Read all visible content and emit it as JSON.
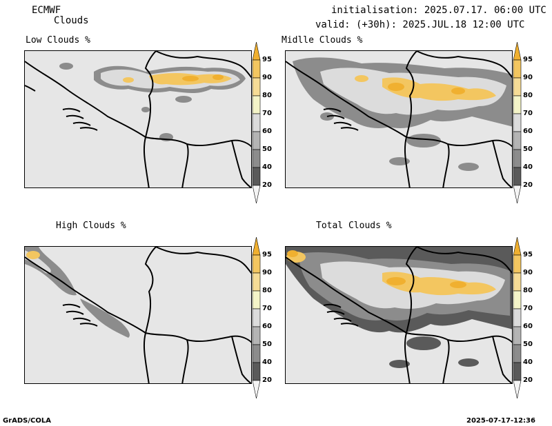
{
  "header": {
    "model": "ECMWF",
    "product": "Clouds",
    "initialisation": "initialisation: 2025.07.17. 06:00 UTC",
    "valid": "valid: (+30h): 2025.JUL.18 12:00 UTC"
  },
  "panels": [
    {
      "title": "Low Clouds %"
    },
    {
      "title": "Midlle Clouds %"
    },
    {
      "title": "High Clouds %"
    },
    {
      "title": "Total Clouds %"
    }
  ],
  "colorbar": {
    "levels": [
      "95",
      "90",
      "80",
      "70",
      "60",
      "50",
      "40",
      "20"
    ],
    "colors": [
      "#f0b030",
      "#f3c660",
      "#f6dc96",
      "#f4f4c8",
      "#dcdcdc",
      "#b4b4b4",
      "#8c8c8c",
      "#5a5a5a",
      "#f4f4f4"
    ]
  },
  "footer": {
    "left": "GrADS/COLA",
    "right": "2025-07-17-12:36"
  }
}
